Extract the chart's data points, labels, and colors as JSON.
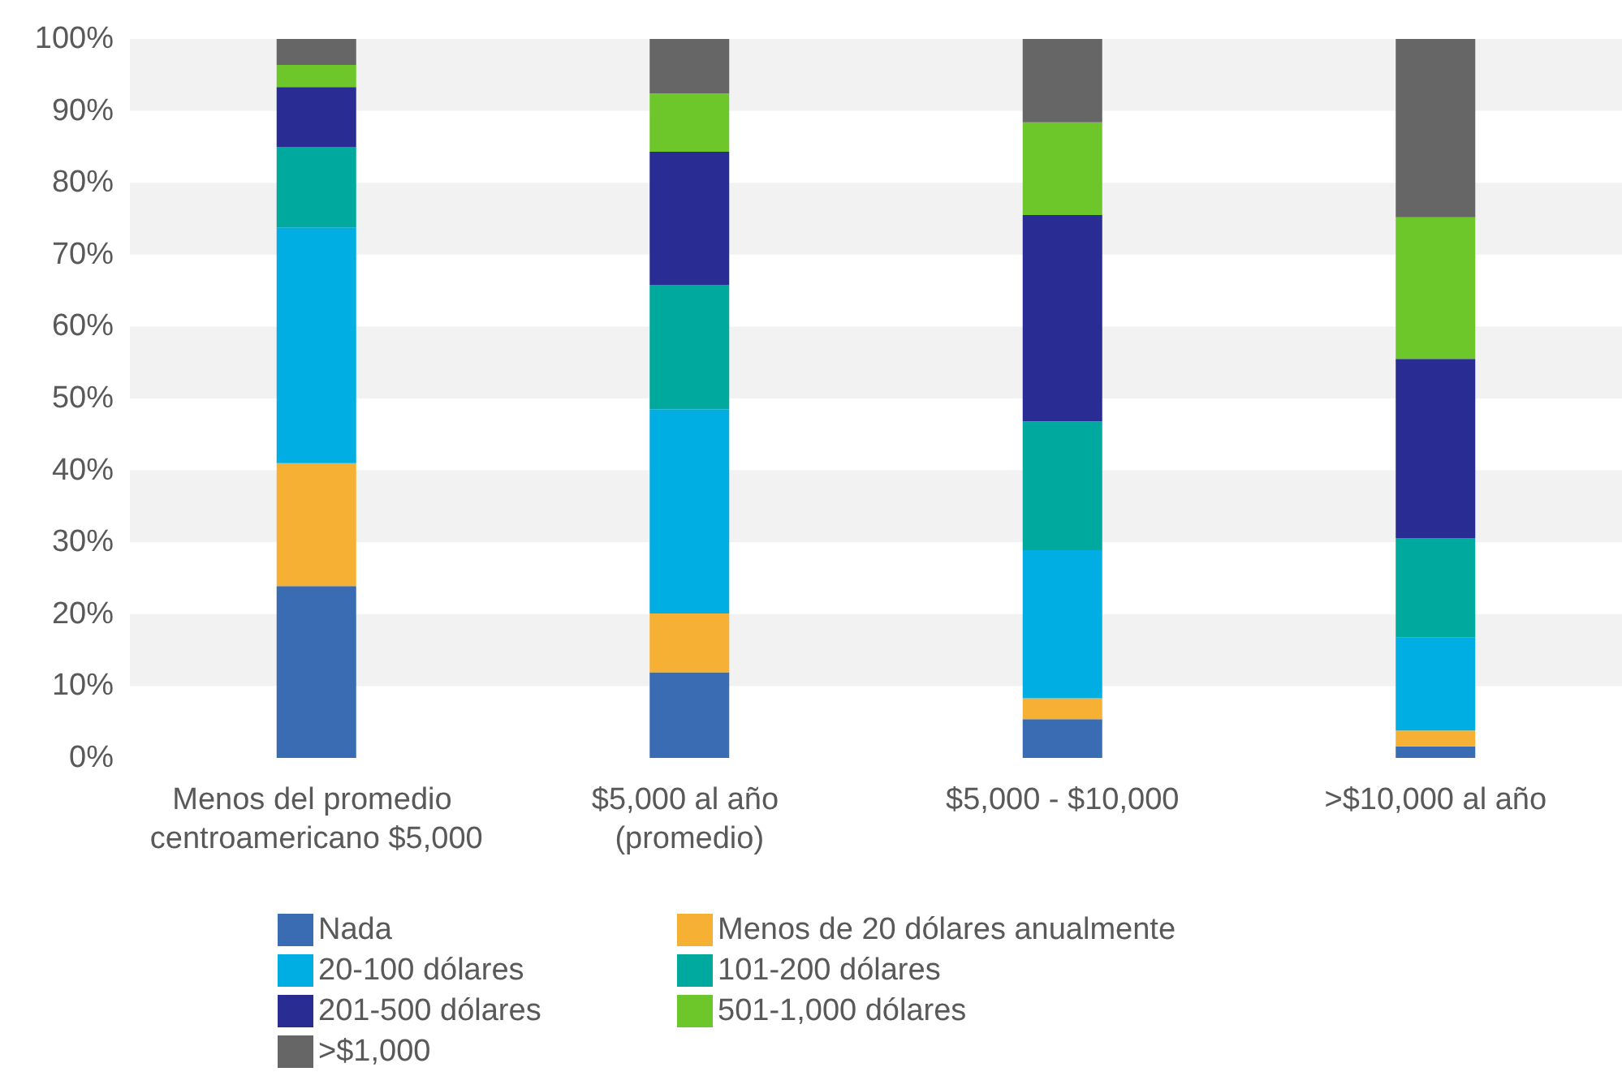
{
  "chart_data": {
    "type": "bar",
    "stacked": true,
    "categories": [
      "Menos del promedio centroamericano $5,000",
      "$5,000 al año (promedio)",
      "$5,000 - $10,000",
      ">$10,000 al año"
    ],
    "series": [
      {
        "name": "Nada",
        "color": "#3a6cb4",
        "values": [
          23.9,
          11.9,
          5.4,
          1.6
        ]
      },
      {
        "name": "Menos de 20 dólares anualmente",
        "color": "#f6b034",
        "values": [
          17.1,
          8.2,
          2.9,
          2.2
        ]
      },
      {
        "name": "20-100 dólares",
        "color": "#00aee3",
        "values": [
          32.8,
          28.4,
          20.6,
          13.0
        ]
      },
      {
        "name": "101-200 dólares",
        "color": "#00a99d",
        "values": [
          11.2,
          17.3,
          17.9,
          13.8
        ]
      },
      {
        "name": "201-500 dólares",
        "color": "#292d93",
        "values": [
          8.3,
          18.5,
          28.7,
          24.9
        ]
      },
      {
        "name": "501-1,000 dólares",
        "color": "#6dc72b",
        "values": [
          3.1,
          8.1,
          12.9,
          19.7
        ]
      },
      {
        "name": ">$1,000",
        "color": "#666666",
        "values": [
          3.6,
          7.6,
          11.6,
          24.8
        ]
      }
    ],
    "ylim": [
      0,
      100
    ],
    "yticks": [
      {
        "value": 0,
        "label": "0%"
      },
      {
        "value": 10,
        "label": "10%"
      },
      {
        "value": 20,
        "label": "20%"
      },
      {
        "value": 30,
        "label": "30%"
      },
      {
        "value": 40,
        "label": "40%"
      },
      {
        "value": 50,
        "label": "50%"
      },
      {
        "value": 60,
        "label": "60%"
      },
      {
        "value": 70,
        "label": "70%"
      },
      {
        "value": 80,
        "label": "80%"
      },
      {
        "value": 90,
        "label": "90%"
      },
      {
        "value": 100,
        "label": "100%"
      }
    ],
    "bands": [
      {
        "axis": "y",
        "from": 10,
        "to": 20,
        "color": "#f2f2f2"
      },
      {
        "axis": "y",
        "from": 30,
        "to": 40,
        "color": "#f2f2f2"
      },
      {
        "axis": "y",
        "from": 50,
        "to": 60,
        "color": "#f2f2f2"
      },
      {
        "axis": "y",
        "from": 70,
        "to": 80,
        "color": "#f2f2f2"
      },
      {
        "axis": "y",
        "from": 90,
        "to": 100,
        "color": "#f2f2f2"
      }
    ],
    "legend": "bottom"
  }
}
